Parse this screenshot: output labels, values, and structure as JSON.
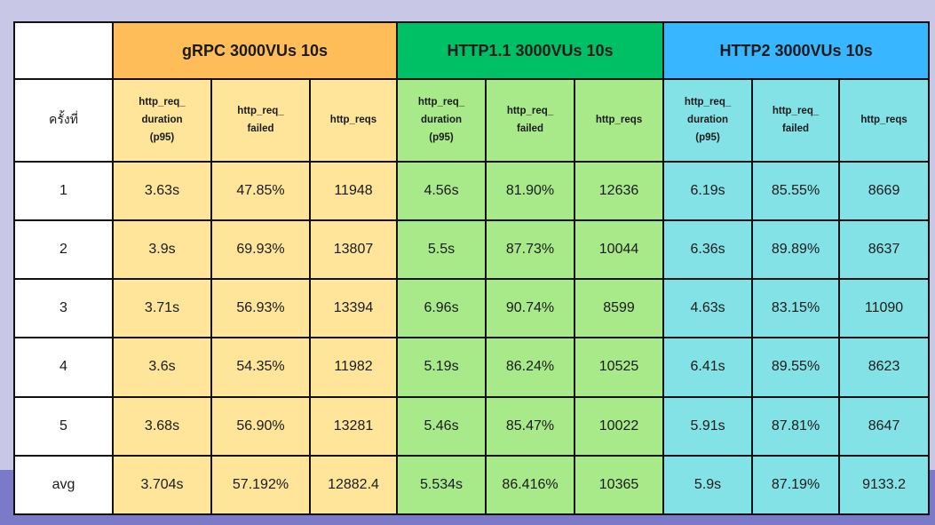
{
  "corner_label": "",
  "run_header": "ครั้งที่",
  "groups": [
    {
      "title": "gRPC 3000VUs 10s",
      "color": "#ffbd59",
      "cell_color": "#ffe59a"
    },
    {
      "title": "HTTP1.1 3000VUs 10s",
      "color": "#00c065",
      "cell_color": "#a8ea89"
    },
    {
      "title": "HTTP2 3000VUs 10s",
      "color": "#38b6ff",
      "cell_color": "#83e2e6"
    }
  ],
  "metrics": {
    "duration": {
      "line1": "http_req_",
      "line2": "duration",
      "line3": "(p95)"
    },
    "failed": {
      "line1": "http_req_",
      "line2": "failed"
    },
    "reqs": {
      "line1": "http_reqs"
    }
  },
  "rows": [
    {
      "label": "1",
      "values": [
        "3.63s",
        "47.85%",
        "11948",
        "4.56s",
        "81.90%",
        "12636",
        "6.19s",
        "85.55%",
        "8669"
      ]
    },
    {
      "label": "2",
      "values": [
        "3.9s",
        "69.93%",
        "13807",
        "5.5s",
        "87.73%",
        "10044",
        "6.36s",
        "89.89%",
        "8637"
      ]
    },
    {
      "label": "3",
      "values": [
        "3.71s",
        "56.93%",
        "13394",
        "6.96s",
        "90.74%",
        "8599",
        "4.63s",
        "83.15%",
        "11090"
      ]
    },
    {
      "label": "4",
      "values": [
        "3.6s",
        "54.35%",
        "11982",
        "5.19s",
        "86.24%",
        "10525",
        "6.41s",
        "89.55%",
        "8623"
      ]
    },
    {
      "label": "5",
      "values": [
        "3.68s",
        "56.90%",
        "13281",
        "5.46s",
        "85.47%",
        "10022",
        "5.91s",
        "87.81%",
        "8647"
      ]
    },
    {
      "label": "avg",
      "values": [
        "3.704s",
        "57.192%",
        "12882.4",
        "5.534s",
        "86.416%",
        "10365",
        "5.9s",
        "87.19%",
        "9133.2"
      ]
    }
  ]
}
